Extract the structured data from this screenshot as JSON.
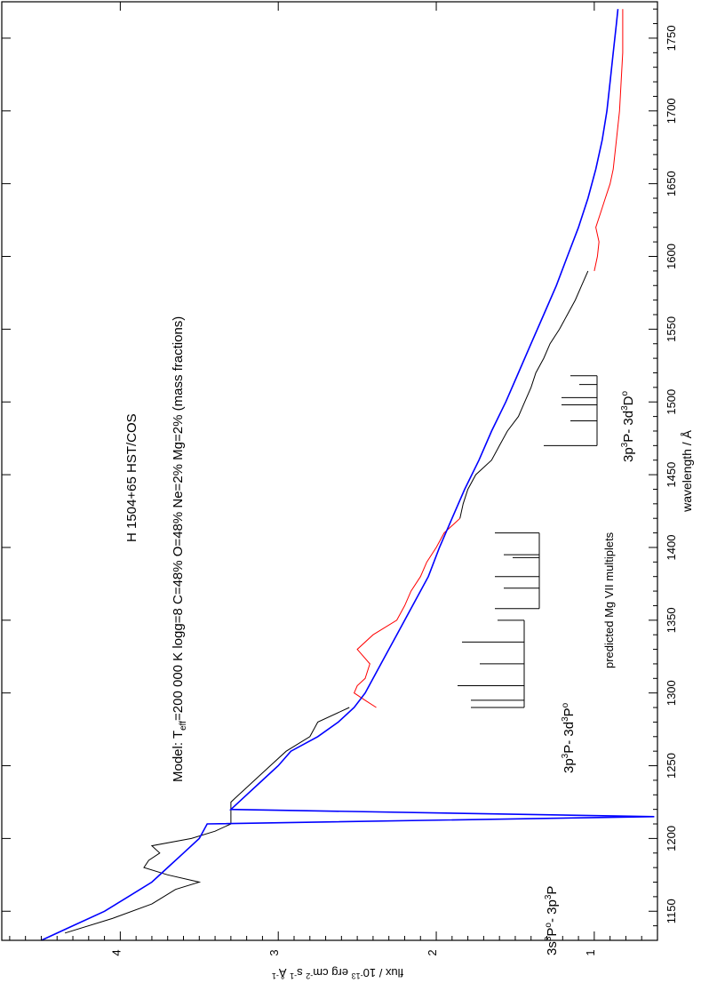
{
  "chart_data": {
    "type": "line",
    "title": "H 1504+65 HST/COS",
    "model_label": {
      "prefix": "Model: T",
      "sub": "eff",
      "rest": "=200 000 K  logg=8   C=48%  O=48%  Ne=2%  Mg=2% (mass fractions)"
    },
    "xlabel": "wavelength / Å",
    "ylabel": {
      "a": "flux / 10",
      "sup1": "-13",
      "b": " erg cm",
      "sup2": "-2",
      "c": " s",
      "sup3": "-1",
      "d": " Å",
      "sup4": "-1"
    },
    "xlim": [
      1130,
      1775
    ],
    "ylim": [
      0.6,
      4.75
    ],
    "x_ticks": [
      1150,
      1200,
      1250,
      1300,
      1350,
      1400,
      1450,
      1500,
      1550,
      1600,
      1650,
      1700,
      1750
    ],
    "y_ticks": [
      1,
      2,
      3,
      4
    ],
    "grid": false,
    "series": [
      {
        "color": "#000000",
        "x": [
          1135,
          1145,
          1155,
          1165,
          1170,
          1175,
          1180,
          1185,
          1190,
          1195,
          1200,
          1205,
          1210,
          1225,
          1230,
          1240,
          1250,
          1260,
          1270,
          1280,
          1290
        ],
        "y": [
          4.35,
          4.05,
          3.8,
          3.65,
          3.5,
          3.7,
          3.85,
          3.82,
          3.75,
          3.8,
          3.55,
          3.4,
          3.3,
          3.3,
          3.25,
          3.15,
          3.05,
          2.95,
          2.8,
          2.75,
          2.55
        ]
      },
      {
        "color": "#ff0000",
        "x": [
          1290,
          1295,
          1300,
          1305,
          1310,
          1320,
          1330,
          1340,
          1350,
          1360,
          1370,
          1380,
          1390,
          1400,
          1410,
          1420
        ],
        "y": [
          2.38,
          2.45,
          2.52,
          2.5,
          2.45,
          2.42,
          2.5,
          2.4,
          2.25,
          2.2,
          2.16,
          2.1,
          2.06,
          2.0,
          1.95,
          1.85
        ]
      },
      {
        "color": "#000000",
        "x": [
          1420,
          1430,
          1440,
          1450,
          1460,
          1470,
          1480,
          1490,
          1500,
          1510,
          1520,
          1530,
          1540,
          1550,
          1560,
          1570,
          1580,
          1590
        ],
        "y": [
          1.85,
          1.83,
          1.8,
          1.75,
          1.65,
          1.6,
          1.55,
          1.48,
          1.44,
          1.4,
          1.37,
          1.32,
          1.28,
          1.22,
          1.17,
          1.12,
          1.08,
          1.04
        ]
      },
      {
        "color": "#ff0000",
        "x": [
          1590,
          1600,
          1610,
          1620,
          1630,
          1640,
          1650,
          1660,
          1680,
          1700,
          1720,
          1740,
          1760,
          1770
        ],
        "y": [
          1.0,
          0.98,
          0.97,
          0.99,
          0.96,
          0.93,
          0.9,
          0.88,
          0.86,
          0.84,
          0.83,
          0.82,
          0.82,
          0.82
        ]
      },
      {
        "color": "#0000ff",
        "x": [
          1130,
          1140,
          1150,
          1160,
          1170,
          1180,
          1190,
          1200,
          1210,
          1215,
          1220,
          1230,
          1240,
          1250,
          1260,
          1270,
          1280,
          1290,
          1300,
          1320,
          1340,
          1360,
          1380,
          1400,
          1420,
          1440,
          1460,
          1480,
          1500,
          1520,
          1540,
          1560,
          1580,
          1600,
          1620,
          1640,
          1660,
          1680,
          1700,
          1720,
          1740,
          1760,
          1770
        ],
        "y": [
          4.5,
          4.3,
          4.1,
          3.95,
          3.8,
          3.7,
          3.6,
          3.5,
          3.45,
          0.62,
          3.3,
          3.2,
          3.1,
          3.0,
          2.92,
          2.75,
          2.62,
          2.52,
          2.45,
          2.35,
          2.25,
          2.15,
          2.05,
          1.98,
          1.9,
          1.82,
          1.73,
          1.65,
          1.56,
          1.48,
          1.4,
          1.32,
          1.24,
          1.17,
          1.1,
          1.04,
          0.99,
          0.95,
          0.92,
          0.9,
          0.88,
          0.86,
          0.85
        ]
      }
    ],
    "multiplets": [
      {
        "label_a": "3s",
        "sup_a": "3",
        "label_b": "P",
        "sup_b": "o",
        "label_c": "- 3p",
        "sup_c": "3",
        "label_d": "P",
        "lines": [
          1290,
          1295,
          1305,
          1320,
          1335,
          1350
        ],
        "range": [
          1290,
          1350
        ]
      },
      {
        "label_a": "3p",
        "sup_a": "3",
        "label_b": "P- 3d",
        "sup_b": "3",
        "label_c": "P",
        "sup_c": "o",
        "label_d": "",
        "lines": [
          1358,
          1372,
          1380,
          1393,
          1395,
          1410
        ],
        "range": [
          1358,
          1410
        ]
      },
      {
        "label_a": "3p",
        "sup_a": "3",
        "label_b": "P- 3d",
        "sup_b": "3",
        "label_c": "D",
        "sup_c": "o",
        "label_d": "",
        "lines": [
          1470,
          1487,
          1498,
          1503,
          1512,
          1518
        ],
        "range": [
          1470,
          1518
        ]
      }
    ],
    "multiplet_caption": "predicted Mg VII multiplets"
  }
}
